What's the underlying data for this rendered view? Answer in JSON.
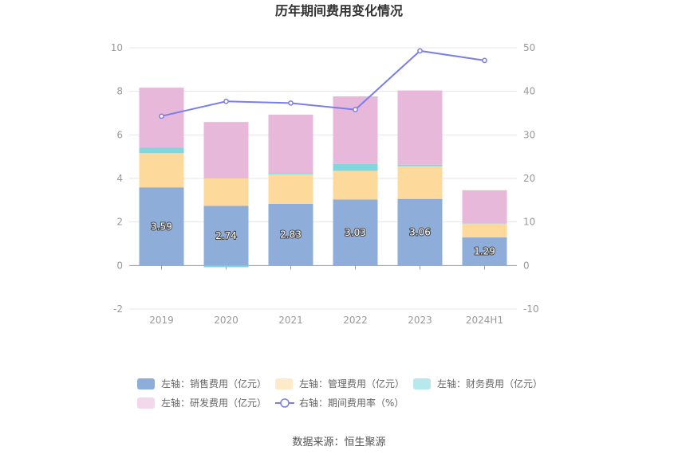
{
  "chart_data": {
    "type": "bar",
    "title": "历年期间费用变化情况",
    "categories": [
      "2019",
      "2020",
      "2021",
      "2022",
      "2023",
      "2024H1"
    ],
    "stacked": true,
    "left_axis": {
      "ylim": [
        -2,
        10
      ],
      "ticks": [
        "-2",
        "0",
        "2",
        "4",
        "6",
        "8",
        "10"
      ]
    },
    "right_axis": {
      "ylim": [
        -10,
        50
      ],
      "ticks": [
        "-10",
        "0",
        "10",
        "20",
        "30",
        "40",
        "50"
      ]
    },
    "series": [
      {
        "name": "左轴：销售费用（亿元）",
        "type": "bar",
        "axis": "left",
        "color": "#8eadd9",
        "values": [
          3.59,
          2.74,
          2.83,
          3.03,
          3.06,
          1.29
        ],
        "labels": [
          "3.59",
          "2.74",
          "2.83",
          "3.03",
          "3.06",
          "1.29"
        ]
      },
      {
        "name": "左轴：管理费用（亿元）",
        "type": "bar",
        "axis": "left",
        "color": "#fdd99c",
        "values": [
          1.57,
          1.26,
          1.36,
          1.32,
          1.5,
          0.64
        ]
      },
      {
        "name": "左轴：财务费用（亿元）",
        "type": "bar",
        "axis": "left",
        "color": "#7fd6dc",
        "values": [
          0.25,
          -0.08,
          0.05,
          0.32,
          0.07,
          0.01
        ]
      },
      {
        "name": "左轴：研发费用（亿元）",
        "type": "bar",
        "axis": "left",
        "color": "#e7b8d9",
        "values": [
          2.76,
          2.59,
          2.69,
          3.1,
          3.41,
          1.52
        ]
      },
      {
        "name": "右轴：期间费用率（%）",
        "type": "line",
        "axis": "right",
        "color": "#7b7de8",
        "values": [
          34.3,
          37.7,
          37.3,
          35.8,
          49.3,
          47.1
        ]
      }
    ],
    "grid": true,
    "legend_position": "bottom"
  },
  "source": "数据来源：恒生聚源"
}
